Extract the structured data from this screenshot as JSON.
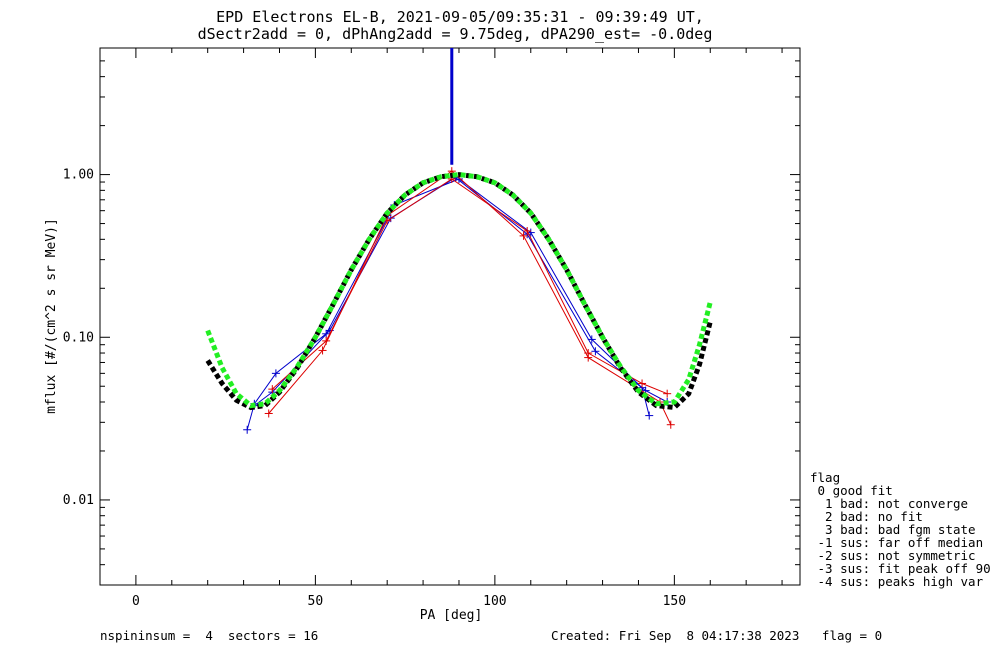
{
  "chart_data": {
    "type": "line",
    "title_line1": "EPD Electrons EL-B, 2021-09-05/09:35:31 - 09:39:49 UT,",
    "title_line2": "dSectr2add = 0, dPhAng2add = 9.75deg, dPA290_est=  -0.0deg",
    "xlabel": "PA [deg]",
    "ylabel": "mflux [#/(cm^2 s sr MeV)]",
    "xlim": [
      -10,
      185
    ],
    "ylim": [
      0.003,
      6.0
    ],
    "yscale": "log",
    "x_ticks": [
      0,
      50,
      100,
      150
    ],
    "x_tick_labels": [
      "0",
      "50",
      "100",
      "150"
    ],
    "y_ticks": [
      0.01,
      0.1,
      1.0
    ],
    "y_tick_labels": [
      "0.01",
      "0.10",
      "1.00"
    ],
    "series": [
      {
        "color": "#0000cc",
        "marker": "plus",
        "x": [
          31,
          33,
          39,
          53,
          72,
          90,
          110,
          127,
          141,
          143
        ],
        "y": [
          0.027,
          0.039,
          0.06,
          0.105,
          0.65,
          0.94,
          0.44,
          0.097,
          0.049,
          0.033
        ]
      },
      {
        "color": "#0000cc",
        "marker": "plus",
        "x": [
          33,
          38,
          54,
          71,
          89,
          109,
          128,
          142,
          148
        ],
        "y": [
          0.038,
          0.046,
          0.11,
          0.54,
          0.96,
          0.43,
          0.082,
          0.047,
          0.04
        ]
      },
      {
        "color": "#dd0000",
        "marker": "plus",
        "x": [
          37,
          52,
          70,
          88,
          108,
          126,
          146,
          149
        ],
        "y": [
          0.034,
          0.083,
          0.56,
          1.05,
          0.42,
          0.075,
          0.04,
          0.029
        ]
      },
      {
        "color": "#dd0000",
        "marker": "plus",
        "x": [
          38,
          53,
          70,
          88,
          109,
          126,
          141,
          148
        ],
        "y": [
          0.048,
          0.095,
          0.52,
          0.94,
          0.45,
          0.08,
          0.052,
          0.045
        ]
      },
      {
        "color": "#000000",
        "style": "dashed-fit",
        "x": [
          20,
          24,
          28,
          32,
          36,
          40,
          45,
          50,
          55,
          60,
          65,
          70,
          75,
          80,
          85,
          90,
          95,
          100,
          105,
          110,
          115,
          120,
          125,
          130,
          135,
          140,
          145,
          150,
          154,
          157,
          160
        ],
        "y": [
          0.072,
          0.052,
          0.041,
          0.037,
          0.038,
          0.046,
          0.065,
          0.1,
          0.16,
          0.26,
          0.4,
          0.58,
          0.75,
          0.89,
          0.97,
          1.0,
          0.97,
          0.89,
          0.75,
          0.58,
          0.4,
          0.26,
          0.16,
          0.1,
          0.065,
          0.046,
          0.038,
          0.037,
          0.045,
          0.068,
          0.125
        ]
      },
      {
        "color": "#22ee22",
        "style": "dashed-fit",
        "x": [
          20,
          24,
          28,
          32,
          36,
          40,
          45,
          50,
          55,
          60,
          65,
          70,
          75,
          80,
          85,
          90,
          95,
          100,
          105,
          110,
          115,
          120,
          125,
          130,
          135,
          140,
          145,
          150,
          154,
          157,
          160
        ],
        "y": [
          0.11,
          0.065,
          0.045,
          0.038,
          0.039,
          0.047,
          0.066,
          0.1,
          0.16,
          0.26,
          0.4,
          0.58,
          0.75,
          0.89,
          0.97,
          1.0,
          0.97,
          0.89,
          0.75,
          0.58,
          0.4,
          0.26,
          0.16,
          0.1,
          0.066,
          0.047,
          0.039,
          0.04,
          0.055,
          0.09,
          0.165
        ]
      }
    ],
    "vertical_marker": {
      "x": 88,
      "y_from": 1.15,
      "y_to": 6.0,
      "color": "#0000cc"
    },
    "grid": false
  },
  "legend": {
    "title": "flag",
    "items": [
      " 0 good fit",
      "  1 bad: not converge",
      "  2 bad: no fit",
      "  3 bad: bad fgm state",
      " -1 sus: far off median",
      " -2 sus: not symmetric",
      " -3 sus: fit peak off 90",
      " -4 sus: peaks high var"
    ]
  },
  "footer": {
    "left": "nspininsum =  4  sectors = 16",
    "right": "Created: Fri Sep  8 04:17:38 2023   flag = 0"
  }
}
